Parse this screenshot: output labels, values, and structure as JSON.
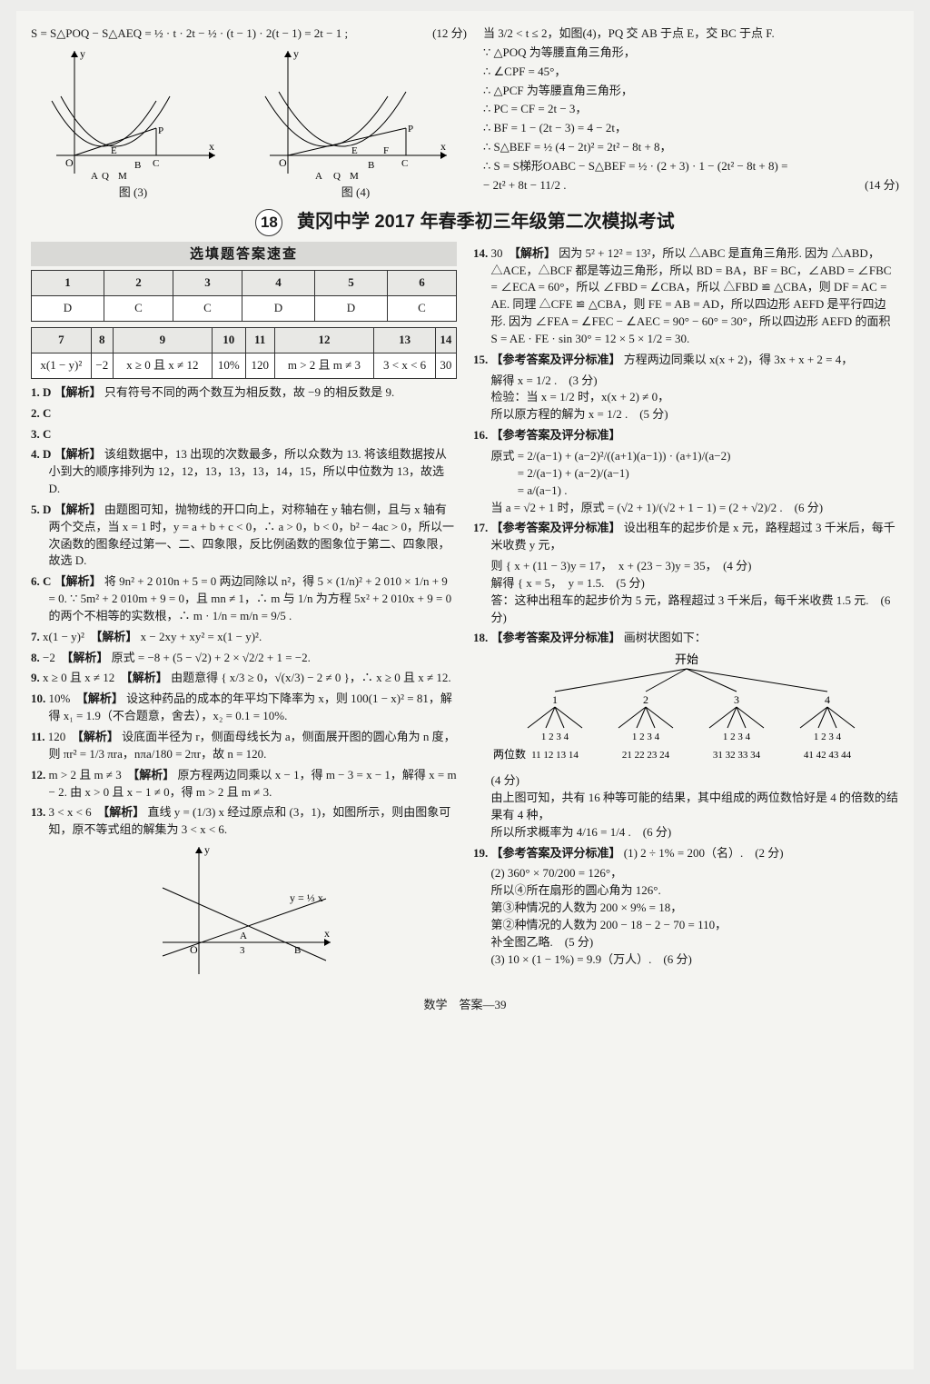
{
  "top": {
    "eq": "S = S△POQ − S△AEQ = ½ · t · 2t − ½ · (t − 1) · 2(t − 1) = 2t − 1 ;",
    "score_eq": "(12 分)",
    "fig3_caption": "图 (3)",
    "fig4_caption": "图 (4)",
    "right_lines": [
      "当 3/2 < t ≤ 2，如图(4)，PQ 交 AB 于点 E，交 BC 于点 F.",
      "∵ △POQ 为等腰直角三角形，",
      "∴ ∠CPF = 45°，",
      "∴ △PCF 为等腰直角三角形，",
      "∴ PC = CF = 2t − 3，",
      "∴ BF = 1 − (2t − 3) = 4 − 2t，",
      "∴ S△BEF = ½ (4 − 2t)² = 2t² − 8t + 8，",
      "∴ S = S梯形OABC − S△BEF = ½ · (2 + 3) · 1 − (2t² − 8t + 8) =",
      "− 2t² + 8t − 11/2 ."
    ],
    "score_right": "(14 分)"
  },
  "banner": {
    "num": "18",
    "title": "黄冈中学 2017 年春季初三年级第二次模拟考试"
  },
  "quickcheck_title": "选填题答案速查",
  "table1": {
    "headers": [
      "1",
      "2",
      "3",
      "4",
      "5",
      "6"
    ],
    "row": [
      "D",
      "C",
      "C",
      "D",
      "D",
      "C"
    ]
  },
  "table2": {
    "headers": [
      "7",
      "8",
      "9",
      "10",
      "11",
      "12",
      "13",
      "14"
    ],
    "row": [
      "x(1 − y)²",
      "−2",
      "x ≥ 0 且 x ≠ 12",
      "10%",
      "120",
      "m > 2 且 m ≠ 3",
      "3 < x < 6",
      "30"
    ]
  },
  "left_items": [
    {
      "n": "1. D",
      "tag": "【解析】",
      "text": "只有符号不同的两个数互为相反数，故 −9 的相反数是 9."
    },
    {
      "n": "2. C",
      "text": ""
    },
    {
      "n": "3. C",
      "text": ""
    },
    {
      "n": "4. D",
      "tag": "【解析】",
      "text": "该组数据中，13 出现的次数最多，所以众数为 13. 将该组数据按从小到大的顺序排列为 12，12，13，13，13，14，15，所以中位数为 13，故选 D."
    },
    {
      "n": "5. D",
      "tag": "【解析】",
      "text": "由题图可知，抛物线的开口向上，对称轴在 y 轴右侧，且与 x 轴有两个交点，当 x = 1 时，y = a + b + c < 0，∴ a > 0，b < 0，b² − 4ac > 0，所以一次函数的图象经过第一、二、四象限，反比例函数的图象位于第二、四象限，故选 D."
    },
    {
      "n": "6. C",
      "tag": "【解析】",
      "text": "将 9n² + 2 010n + 5 = 0 两边同除以 n²，得 5 × (1/n)² + 2 010 × 1/n + 9 = 0. ∵ 5m² + 2 010m + 9 = 0，且 mn ≠ 1，∴ m 与 1/n 为方程 5x² + 2 010x + 9 = 0 的两个不相等的实数根，∴ m · 1/n = m/n = 9/5 ."
    },
    {
      "n": "7.",
      "ans": "x(1 − y)²",
      "tag": "【解析】",
      "text": "x − 2xy + xy² = x(1 − y)²."
    },
    {
      "n": "8.",
      "ans": "−2",
      "tag": "【解析】",
      "text": "原式 = −8 + (5 − √2) + 2 × √2/2 + 1 = −2."
    },
    {
      "n": "9.",
      "ans": "x ≥ 0 且 x ≠ 12",
      "tag": "【解析】",
      "text": "由题意得 { x/3 ≥ 0，√(x/3) − 2 ≠ 0 }，∴ x ≥ 0 且 x ≠ 12."
    },
    {
      "n": "10.",
      "ans": "10%",
      "tag": "【解析】",
      "text": "设这种药品的成本的年平均下降率为 x，则 100(1 − x)² = 81，解得 x₁ = 1.9（不合题意，舍去），x₂ = 0.1 = 10%."
    },
    {
      "n": "11.",
      "ans": "120",
      "tag": "【解析】",
      "text": "设底面半径为 r，侧面母线长为 a，侧面展开图的圆心角为 n 度，则 πr² = 1/3 πra，nπa/180 = 2πr，故 n = 120."
    },
    {
      "n": "12.",
      "ans": "m > 2 且 m ≠ 3",
      "tag": "【解析】",
      "text": "原方程两边同乘以 x − 1，得 m − 3 = x − 1，解得 x = m − 2. 由 x > 0 且 x − 1 ≠ 0，得 m > 2 且 m ≠ 3."
    },
    {
      "n": "13.",
      "ans": "3 < x < 6",
      "tag": "【解析】",
      "text": "直线 y = (1/3) x 经过原点和 (3，1)，如图所示，则由图象可知，原不等式组的解集为 3 < x < 6."
    }
  ],
  "right_items": [
    {
      "n": "14.",
      "ans": "30",
      "tag": "【解析】",
      "text": "因为 5² + 12² = 13²，所以 △ABC 是直角三角形. 因为 △ABD，△ACE，△BCF 都是等边三角形，所以 BD = BA，BF = BC，∠ABD = ∠FBC = ∠ECA = 60°，所以 ∠FBD = ∠CBA，所以 △FBD ≌ △CBA，则 DF = AC = AE. 同理 △CFE ≌ △CBA，则 FE = AB = AD，所以四边形 AEFD 是平行四边形. 因为 ∠FEA = ∠FEC − ∠AEC = 90° − 60° = 30°，所以四边形 AEFD 的面积 S = AE · FE · sin 30° = 12 × 5 × 1/2 = 30."
    },
    {
      "n": "15.",
      "tag": "【参考答案及评分标准】",
      "text": "方程两边同乘以 x(x + 2)，得 3x + x + 2 = 4，",
      "extra": [
        "解得 x = 1/2 .　(3 分)",
        "检验：当 x = 1/2 时，x(x + 2) ≠ 0，",
        "所以原方程的解为 x = 1/2 .　(5 分)"
      ]
    },
    {
      "n": "16.",
      "tag": "【参考答案及评分标准】",
      "text": "",
      "extra": [
        "原式 = 2/(a−1) + (a−2)²/((a+1)(a−1)) · (a+1)/(a−2)",
        "　　 = 2/(a−1) + (a−2)/(a−1)",
        "　　 = a/(a−1) .",
        "当 a = √2 + 1 时，原式 = (√2 + 1)/(√2 + 1 − 1) = (2 + √2)/2 .　(6 分)"
      ]
    },
    {
      "n": "17.",
      "tag": "【参考答案及评分标准】",
      "text": "设出租车的起步价是 x 元，路程超过 3 千米后，每千米收费 y 元，",
      "extra": [
        "则 { x + (11 − 3)y = 17，　x + (23 − 3)y = 35，　(4 分)",
        "解得 { x = 5，　y = 1.5.　(5 分)",
        "答：这种出租车的起步价为 5 元，路程超过 3 千米后，每千米收费 1.5 元.　(6 分)"
      ]
    },
    {
      "n": "18.",
      "tag": "【参考答案及评分标准】",
      "text": "画树状图如下：",
      "tree": true,
      "extra": [
        "(4 分)",
        "由上图可知，共有 16 种等可能的结果，其中组成的两位数恰好是 4 的倍数的结果有 4 种，",
        "所以所求概率为 4/16 = 1/4 .　(6 分)"
      ]
    },
    {
      "n": "19.",
      "tag": "【参考答案及评分标准】",
      "text": "(1) 2 ÷ 1% = 200（名）.　(2 分)",
      "extra": [
        "(2) 360° × 70/200 = 126°，",
        "所以④所在扇形的圆心角为 126°.",
        "第③种情况的人数为 200 × 9% = 18，",
        "第②种情况的人数为 200 − 18 − 2 − 70 = 110，",
        "补全图乙略.　(5 分)",
        "(3) 10 × (1 − 1%) = 9.9（万人）.　(6 分)"
      ]
    }
  ],
  "tree": {
    "root": "开始",
    "l1": [
      "1",
      "2",
      "3",
      "4"
    ],
    "l2_labels": [
      "1 2 3 4",
      "1 2 3 4",
      "1 2 3 4",
      "1 2 3 4"
    ],
    "bottom_label": "两位数",
    "bottom": [
      "11 12 13 14",
      "21 22 23 24",
      "31 32 33 34",
      "41 42 43 44"
    ]
  },
  "footer": "数学　答案—39",
  "colors": {
    "bg": "#ededeb",
    "paper": "#f4f4f1",
    "th": "#e8e8e5",
    "line": "#333333"
  },
  "graph13_label": "y = ⅓ x"
}
